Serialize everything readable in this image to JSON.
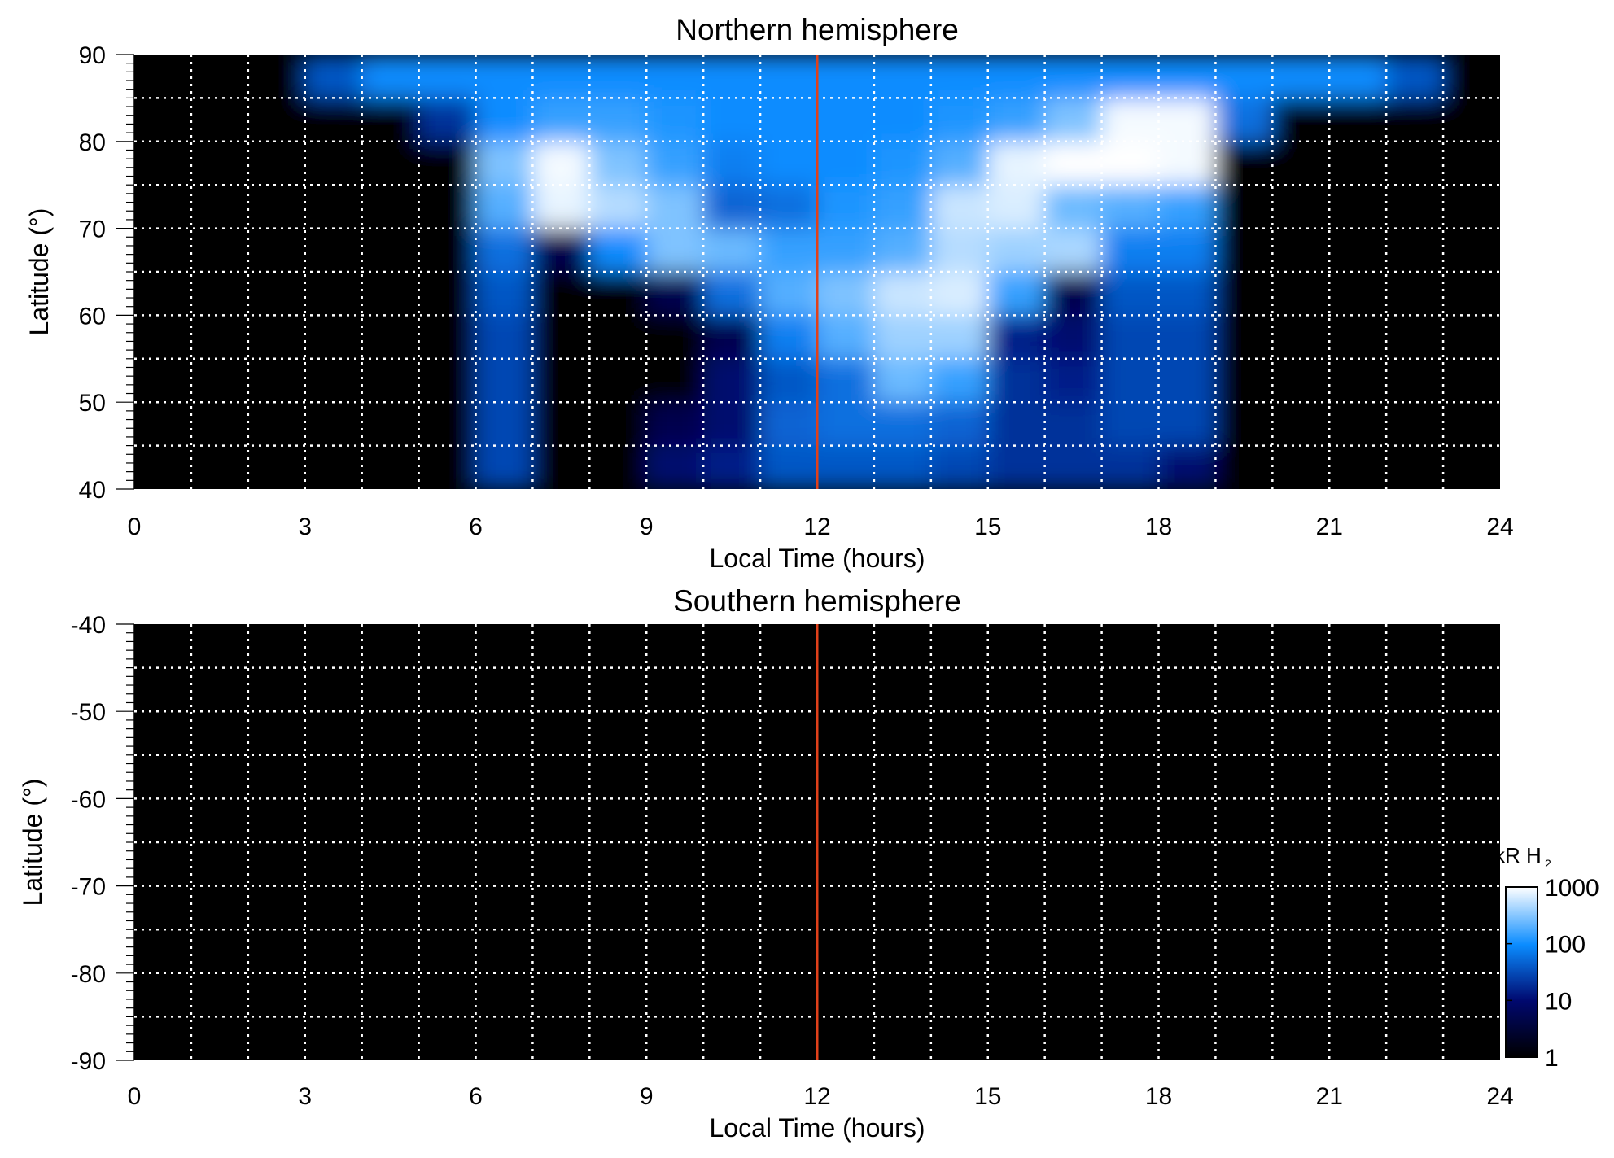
{
  "chart_data": [
    {
      "type": "heatmap",
      "title": "Northern hemisphere",
      "xlabel": "Local Time (hours)",
      "ylabel": "Latitude (°)",
      "xlim": [
        0,
        24
      ],
      "ylim": [
        40,
        90
      ],
      "xticks": [
        "0",
        "3",
        "6",
        "9",
        "12",
        "15",
        "18",
        "21",
        "24"
      ],
      "yticks": [
        "40",
        "50",
        "60",
        "70",
        "80",
        "90"
      ],
      "ytick_values": [
        40,
        50,
        60,
        70,
        80,
        90
      ],
      "grid": true,
      "marker_line": {
        "x": 12,
        "color": "#e0401a"
      },
      "x_bin_hours": [
        0,
        1,
        2,
        3,
        4,
        5,
        6,
        7,
        8,
        9,
        10,
        11,
        12,
        13,
        14,
        15,
        16,
        17,
        18,
        19,
        20,
        21,
        22,
        23
      ],
      "lat_bin_centers": [
        87.5,
        82.5,
        77.5,
        72.5,
        67.5,
        62.5,
        57.5,
        52.5,
        47.5,
        42.5
      ],
      "values_kR": [
        [
          0,
          0,
          1,
          40,
          100,
          100,
          100,
          100,
          100,
          100,
          100,
          100,
          100,
          100,
          100,
          100,
          100,
          100,
          100,
          100,
          100,
          100,
          40,
          1
        ],
        [
          0,
          0,
          0,
          0,
          0,
          20,
          100,
          150,
          150,
          120,
          100,
          100,
          100,
          100,
          120,
          150,
          300,
          900,
          900,
          60,
          0,
          0,
          0,
          0
        ],
        [
          0,
          0,
          0,
          0,
          0,
          0,
          300,
          900,
          300,
          150,
          80,
          100,
          100,
          120,
          200,
          800,
          1000,
          1000,
          900,
          0,
          0,
          0,
          0,
          0
        ],
        [
          0,
          0,
          0,
          0,
          0,
          0,
          200,
          800,
          500,
          300,
          50,
          60,
          120,
          150,
          600,
          700,
          250,
          200,
          150,
          0,
          0,
          0,
          0,
          0
        ],
        [
          0,
          0,
          0,
          0,
          0,
          0,
          60,
          5,
          100,
          300,
          250,
          150,
          150,
          200,
          500,
          400,
          450,
          80,
          80,
          0,
          0,
          0,
          0,
          0
        ],
        [
          0,
          0,
          0,
          0,
          0,
          0,
          40,
          0,
          0,
          5,
          60,
          200,
          300,
          600,
          700,
          150,
          5,
          40,
          40,
          0,
          0,
          0,
          0,
          0
        ],
        [
          0,
          0,
          0,
          0,
          0,
          0,
          30,
          0,
          0,
          0,
          5,
          80,
          200,
          400,
          400,
          15,
          10,
          30,
          30,
          0,
          0,
          0,
          0,
          0
        ],
        [
          0,
          0,
          0,
          0,
          0,
          0,
          30,
          0,
          0,
          0,
          10,
          40,
          60,
          250,
          150,
          20,
          15,
          30,
          30,
          0,
          0,
          0,
          0,
          0
        ],
        [
          0,
          0,
          0,
          0,
          0,
          0,
          30,
          0,
          0,
          5,
          10,
          50,
          60,
          60,
          50,
          20,
          20,
          30,
          30,
          0,
          0,
          0,
          0,
          0
        ],
        [
          0,
          0,
          0,
          0,
          0,
          0,
          30,
          0,
          0,
          10,
          15,
          40,
          40,
          40,
          30,
          20,
          20,
          20,
          10,
          0,
          0,
          0,
          0,
          0
        ]
      ]
    },
    {
      "type": "heatmap",
      "title": "Southern hemisphere",
      "xlabel": "Local Time (hours)",
      "ylabel": "Latitude (°)",
      "xlim": [
        0,
        24
      ],
      "ylim": [
        -90,
        -40
      ],
      "xticks": [
        "0",
        "3",
        "6",
        "9",
        "12",
        "15",
        "18",
        "21",
        "24"
      ],
      "yticks": [
        "-40",
        "-50",
        "-60",
        "-70",
        "-80",
        "-90"
      ],
      "ytick_values": [
        -40,
        -50,
        -60,
        -70,
        -80,
        -90
      ],
      "grid": true,
      "marker_line": {
        "x": 12,
        "color": "#e0401a"
      },
      "values_kR": []
    }
  ],
  "colorbar": {
    "label": "kR H",
    "label_sub": "2",
    "scale": "log",
    "range": [
      1,
      1000
    ],
    "ticks": [
      "1",
      "10",
      "100",
      "1000"
    ],
    "tick_values": [
      1,
      10,
      100,
      1000
    ],
    "colors": [
      "#000000",
      "#00086e",
      "#0a8cff",
      "#ffffff"
    ]
  }
}
